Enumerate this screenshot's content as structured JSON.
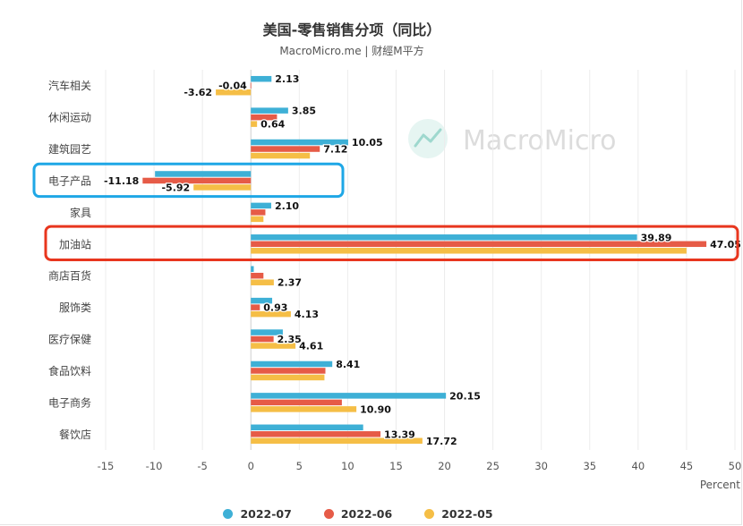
{
  "chart_data": {
    "type": "bar",
    "orientation": "horizontal",
    "title": "美国-零售销售分项（同比）",
    "subtitle": "MacroMicro.me | 财經M平方",
    "watermark": "MacroMicro",
    "xlabel": "Percent",
    "xlim": [
      -15,
      50
    ],
    "xticks": [
      -15,
      -10,
      -5,
      0,
      5,
      10,
      15,
      20,
      25,
      30,
      35,
      40,
      45,
      50
    ],
    "grid": true,
    "legend_position": "bottom",
    "categories": [
      "汽车相关",
      "休闲运动",
      "建筑园艺",
      "电子产品",
      "家具",
      "加油站",
      "商店百货",
      "服饰类",
      "医疗保健",
      "食品饮料",
      "电子商务",
      "餐饮店"
    ],
    "series": [
      {
        "name": "2022-07",
        "color": "#3eb0d6",
        "values": [
          2.13,
          3.85,
          10.05,
          -9.9,
          2.1,
          39.89,
          0.3,
          2.2,
          3.3,
          8.41,
          20.15,
          11.6
        ]
      },
      {
        "name": "2022-06",
        "color": "#e65b47",
        "values": [
          -0.04,
          2.7,
          7.12,
          -11.18,
          1.5,
          47.05,
          1.3,
          0.93,
          2.35,
          7.7,
          9.4,
          13.39
        ]
      },
      {
        "name": "2022-05",
        "color": "#f5be46",
        "values": [
          -3.62,
          0.64,
          6.1,
          -5.92,
          1.3,
          45.0,
          2.37,
          4.13,
          4.61,
          7.6,
          10.9,
          17.72
        ]
      }
    ],
    "data_labels": [
      {
        "cat": 0,
        "series": 0,
        "text": "2.13"
      },
      {
        "cat": 0,
        "series": 1,
        "text": "-0.04"
      },
      {
        "cat": 0,
        "series": 2,
        "text": "-3.62"
      },
      {
        "cat": 1,
        "series": 0,
        "text": "3.85"
      },
      {
        "cat": 1,
        "series": 2,
        "text": "0.64"
      },
      {
        "cat": 2,
        "series": 0,
        "text": "10.05"
      },
      {
        "cat": 2,
        "series": 1,
        "text": "7.12"
      },
      {
        "cat": 3,
        "series": 1,
        "text": "-11.18"
      },
      {
        "cat": 3,
        "series": 2,
        "text": "-5.92"
      },
      {
        "cat": 4,
        "series": 0,
        "text": "2.10"
      },
      {
        "cat": 5,
        "series": 0,
        "text": "39.89"
      },
      {
        "cat": 5,
        "series": 1,
        "text": "47.05"
      },
      {
        "cat": 6,
        "series": 2,
        "text": "2.37"
      },
      {
        "cat": 7,
        "series": 1,
        "text": "0.93"
      },
      {
        "cat": 7,
        "series": 2,
        "text": "4.13"
      },
      {
        "cat": 8,
        "series": 1,
        "text": "2.35"
      },
      {
        "cat": 8,
        "series": 2,
        "text": "4.61"
      },
      {
        "cat": 9,
        "series": 0,
        "text": "8.41"
      },
      {
        "cat": 10,
        "series": 0,
        "text": "20.15"
      },
      {
        "cat": 10,
        "series": 2,
        "text": "10.90"
      },
      {
        "cat": 11,
        "series": 1,
        "text": "13.39"
      },
      {
        "cat": 11,
        "series": 2,
        "text": "17.72"
      }
    ],
    "highlights": [
      {
        "category": "电子产品",
        "color": "#1ea7e6"
      },
      {
        "category": "加油站",
        "color": "#e8361e"
      }
    ]
  }
}
